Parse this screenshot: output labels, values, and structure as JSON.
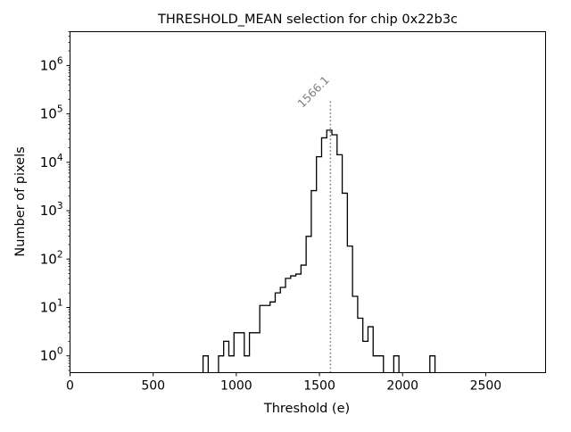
{
  "chart_data": {
    "type": "histogram",
    "title": "THRESHOLD_MEAN selection for chip 0x22b3c",
    "xlabel": "Threshold (e)",
    "ylabel": "Number of pixels",
    "xlim": [
      0,
      2860
    ],
    "ylim": [
      0.45,
      5000000
    ],
    "yscale": "log",
    "xticks": [
      0,
      500,
      1000,
      1500,
      2000,
      2500
    ],
    "xtick_labels": [
      "0",
      "500",
      "1000",
      "1500",
      "2000",
      "2500"
    ],
    "yticks": [
      1,
      10,
      100,
      1000,
      10000,
      100000,
      1000000
    ],
    "ytick_base": "10",
    "ytick_exponents": [
      "0",
      "1",
      "2",
      "3",
      "4",
      "5",
      "6"
    ],
    "bin_start": 800,
    "bin_width": 31,
    "counts": [
      1,
      0,
      0,
      1,
      2,
      1,
      3,
      3,
      1,
      3,
      3,
      11,
      11,
      13,
      20,
      26,
      40,
      45,
      49,
      75,
      295,
      2600,
      13000,
      32000,
      46000,
      37000,
      14300,
      2300,
      185,
      17,
      6,
      2,
      4,
      1,
      1,
      0,
      0,
      1,
      0,
      0,
      0,
      0,
      0,
      0,
      1
    ],
    "mean_line": {
      "value": 1566.1,
      "label": "1566.1",
      "top": 195000,
      "color": "#808080"
    },
    "line_color": "#000000",
    "grid": false
  }
}
